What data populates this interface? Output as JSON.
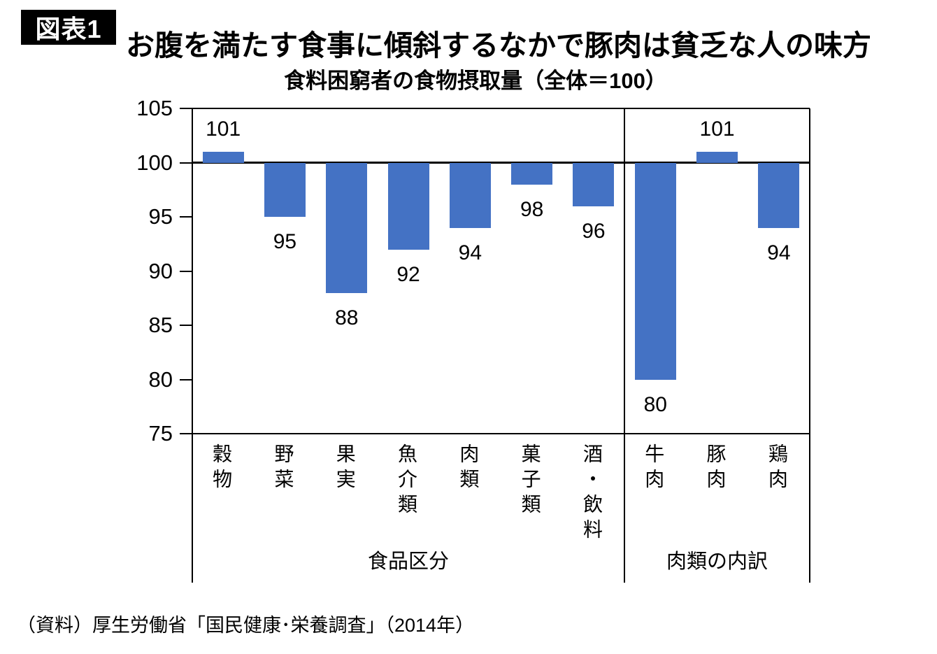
{
  "header": {
    "badge": "図表1",
    "title": "お腹を満たす食事に傾斜するなかで豚肉は貧乏な人の味方"
  },
  "chart_data": {
    "type": "bar",
    "title": "食料困窮者の食物摂取量（全体＝100）",
    "baseline": 100,
    "ylim": [
      75,
      105
    ],
    "yticks": [
      105,
      100,
      95,
      90,
      85,
      80,
      75
    ],
    "bar_color": "#4472C4",
    "axis_color": "#000000",
    "grid": false,
    "groups": [
      {
        "label": "食品区分",
        "categories": [
          "穀物",
          "野菜",
          "果実",
          "魚介類",
          "肉類",
          "菓子類",
          "酒・飲料"
        ],
        "values": [
          101,
          95,
          88,
          92,
          94,
          98,
          96
        ]
      },
      {
        "label": "肉類の内訳",
        "categories": [
          "牛肉",
          "豚肉",
          "鶏肉"
        ],
        "values": [
          80,
          101,
          94
        ]
      }
    ]
  },
  "source": "（資料）厚生労働省「国民健康･栄養調査」（2014年）"
}
